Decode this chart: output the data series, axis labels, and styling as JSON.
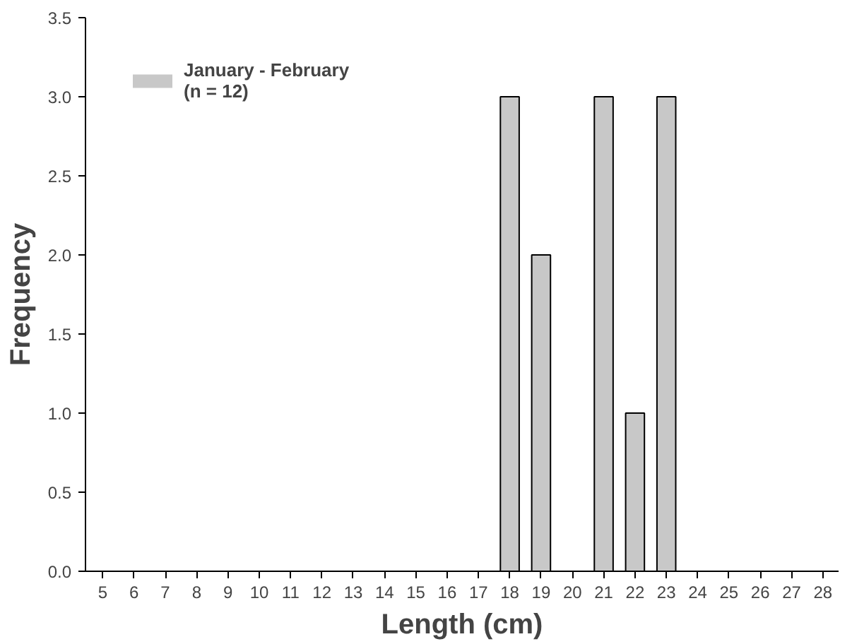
{
  "chart_data": {
    "type": "bar",
    "xlabel": "Length (cm)",
    "ylabel": "Frequency",
    "categories": [
      "5",
      "6",
      "7",
      "8",
      "9",
      "10",
      "11",
      "12",
      "13",
      "14",
      "15",
      "16",
      "17",
      "18",
      "19",
      "20",
      "21",
      "22",
      "23",
      "24",
      "25",
      "26",
      "27",
      "28"
    ],
    "series": [
      {
        "name": "January - February\n(n = 12)",
        "color": "#c8c8c8",
        "values": [
          0,
          0,
          0,
          0,
          0,
          0,
          0,
          0,
          0,
          0,
          0,
          0,
          0,
          3,
          2,
          0,
          3,
          1,
          3,
          0,
          0,
          0,
          0,
          0
        ]
      }
    ],
    "ylim": [
      0,
      3.5
    ],
    "yticks": [
      {
        "value": 0,
        "label": "0.0"
      },
      {
        "value": 0.5,
        "label": "0.5"
      },
      {
        "value": 1,
        "label": "1.0"
      },
      {
        "value": 1.5,
        "label": "1.5"
      },
      {
        "value": 2,
        "label": "2.0"
      },
      {
        "value": 2.5,
        "label": "2.5"
      },
      {
        "value": 3,
        "label": "3.0"
      },
      {
        "value": 3.5,
        "label": "3.5"
      }
    ],
    "grid": false,
    "legend": "top left"
  }
}
